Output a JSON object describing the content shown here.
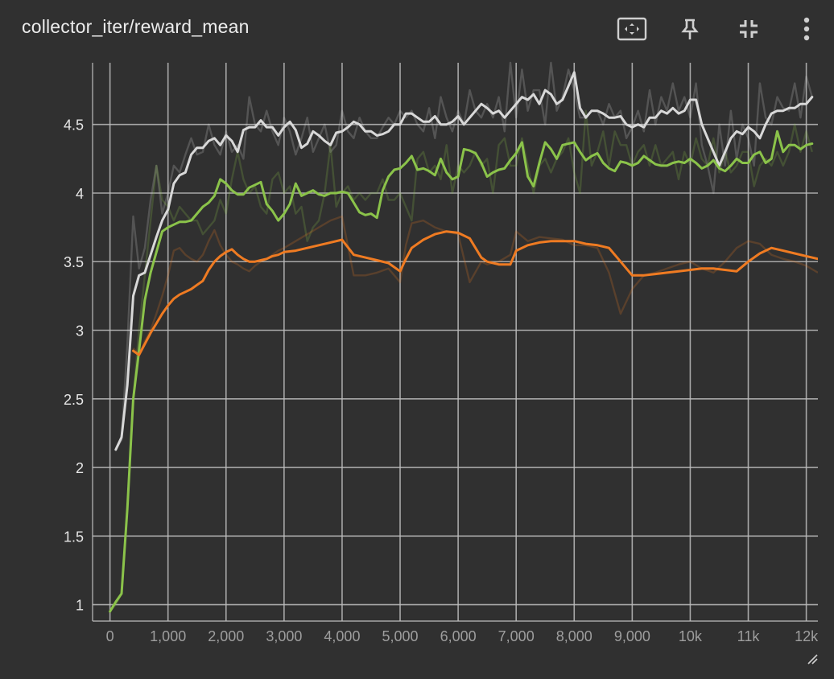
{
  "card": {
    "title": "collector_iter/reward_mean"
  },
  "toolbar": [
    {
      "name": "fit-domain-icon"
    },
    {
      "name": "pin-icon"
    },
    {
      "name": "collapse-icon"
    },
    {
      "name": "more-vert-icon"
    }
  ],
  "colors": {
    "background": "#303030",
    "grid": "#bdbdbd",
    "tick_text": "#e6e6e6",
    "x_tick_text": "#9e9e9e"
  },
  "chart_data": {
    "type": "line",
    "title": "",
    "xlabel": "",
    "ylabel": "",
    "xlim": [
      -300,
      12200
    ],
    "ylim": [
      0.88,
      4.95
    ],
    "grid": true,
    "x_ticks": [
      {
        "value": 0,
        "label": "0"
      },
      {
        "value": 1000,
        "label": "1,000"
      },
      {
        "value": 2000,
        "label": "2,000"
      },
      {
        "value": 3000,
        "label": "3,000"
      },
      {
        "value": 4000,
        "label": "4,000"
      },
      {
        "value": 5000,
        "label": "5,000"
      },
      {
        "value": 6000,
        "label": "6,000"
      },
      {
        "value": 7000,
        "label": "7,000"
      },
      {
        "value": 8000,
        "label": "8,000"
      },
      {
        "value": 9000,
        "label": "9,000"
      },
      {
        "value": 10000,
        "label": "10k"
      },
      {
        "value": 11000,
        "label": "11k"
      },
      {
        "value": 12000,
        "label": "12k"
      }
    ],
    "y_ticks": [
      {
        "value": 1,
        "label": "1"
      },
      {
        "value": 1.5,
        "label": "1.5"
      },
      {
        "value": 2,
        "label": "2"
      },
      {
        "value": 2.5,
        "label": "2.5"
      },
      {
        "value": 3,
        "label": "3"
      },
      {
        "value": 3.5,
        "label": "3.5"
      },
      {
        "value": 4,
        "label": "4"
      },
      {
        "value": 4.5,
        "label": "4.5"
      }
    ],
    "series": [
      {
        "color": "#d8d8d8",
        "x": [
          100,
          200,
          300,
          400,
          500,
          600,
          700,
          800,
          900,
          1000,
          1100,
          1200,
          1300,
          1400,
          1500,
          1600,
          1700,
          1800,
          1900,
          2000,
          2100,
          2200,
          2300,
          2400,
          2500,
          2600,
          2700,
          2800,
          2900,
          3000,
          3100,
          3200,
          3300,
          3400,
          3500,
          3600,
          3700,
          3800,
          3900,
          4000,
          4100,
          4200,
          4300,
          4400,
          4500,
          4600,
          4700,
          4800,
          4900,
          5000,
          5100,
          5200,
          5300,
          5400,
          5500,
          5600,
          5700,
          5800,
          5900,
          6000,
          6100,
          6200,
          6300,
          6400,
          6500,
          6600,
          6700,
          6800,
          6900,
          7000,
          7100,
          7200,
          7300,
          7400,
          7500,
          7600,
          7700,
          7800,
          7900,
          8000,
          8100,
          8200,
          8300,
          8400,
          8500,
          8600,
          8700,
          8800,
          8900,
          9000,
          9100,
          9200,
          9300,
          9400,
          9500,
          9600,
          9700,
          9800,
          9900,
          10000,
          10100,
          10200,
          10300,
          10400,
          10500,
          10600,
          10700,
          10800,
          10900,
          11000,
          11100,
          11200,
          11300,
          11400,
          11500,
          11600,
          11700,
          11800,
          11900,
          12000,
          12100
        ],
        "raw_y": [
          2.13,
          2.2,
          2.9,
          3.83,
          3.45,
          3.6,
          3.95,
          4.2,
          3.85,
          4.0,
          4.2,
          4.15,
          4.28,
          4.4,
          4.28,
          4.3,
          4.5,
          4.35,
          4.28,
          4.45,
          4.3,
          4.35,
          4.25,
          4.7,
          4.5,
          4.45,
          4.6,
          4.45,
          4.35,
          4.55,
          4.45,
          4.28,
          4.4,
          4.55,
          4.3,
          4.4,
          4.5,
          4.3,
          4.35,
          4.6,
          4.45,
          4.4,
          4.55,
          4.45,
          4.4,
          4.4,
          4.48,
          4.55,
          4.5,
          4.6,
          4.55,
          4.6,
          4.5,
          4.45,
          4.62,
          4.4,
          4.7,
          4.55,
          4.45,
          4.6,
          4.5,
          4.75,
          4.6,
          4.55,
          4.65,
          4.55,
          4.7,
          4.45,
          4.95,
          4.55,
          4.9,
          4.6,
          4.75,
          4.75,
          4.5,
          4.95,
          4.6,
          4.7,
          4.9,
          4.75,
          4.55,
          4.55,
          4.6,
          4.6,
          4.5,
          4.65,
          4.55,
          4.6,
          4.4,
          4.48,
          4.6,
          4.45,
          4.75,
          4.5,
          4.7,
          4.6,
          4.8,
          4.6,
          4.7,
          4.55,
          4.8,
          4.35,
          4.2,
          4.0,
          4.5,
          4.2,
          4.6,
          4.25,
          4.5,
          4.4,
          4.2,
          4.8,
          4.55,
          4.5,
          4.7,
          4.62,
          4.6,
          4.8,
          4.55,
          4.85,
          4.7
        ],
        "y": [
          2.13,
          2.22,
          2.6,
          3.25,
          3.4,
          3.42,
          3.55,
          3.68,
          3.8,
          3.88,
          4.07,
          4.13,
          4.15,
          4.28,
          4.33,
          4.33,
          4.38,
          4.4,
          4.35,
          4.42,
          4.38,
          4.3,
          4.46,
          4.48,
          4.48,
          4.53,
          4.48,
          4.48,
          4.42,
          4.48,
          4.52,
          4.46,
          4.33,
          4.36,
          4.45,
          4.42,
          4.38,
          4.35,
          4.44,
          4.45,
          4.48,
          4.52,
          4.5,
          4.45,
          4.45,
          4.42,
          4.43,
          4.45,
          4.5,
          4.5,
          4.58,
          4.58,
          4.55,
          4.52,
          4.52,
          4.56,
          4.5,
          4.5,
          4.52,
          4.56,
          4.5,
          4.55,
          4.6,
          4.65,
          4.62,
          4.58,
          4.6,
          4.55,
          4.6,
          4.65,
          4.7,
          4.68,
          4.72,
          4.65,
          4.75,
          4.72,
          4.65,
          4.68,
          4.78,
          4.88,
          4.62,
          4.55,
          4.6,
          4.6,
          4.58,
          4.55,
          4.55,
          4.56,
          4.5,
          4.48,
          4.5,
          4.48,
          4.55,
          4.55,
          4.6,
          4.58,
          4.62,
          4.58,
          4.6,
          4.68,
          4.68,
          4.5,
          4.4,
          4.3,
          4.2,
          4.3,
          4.4,
          4.45,
          4.43,
          4.48,
          4.45,
          4.4,
          4.5,
          4.58,
          4.6,
          4.6,
          4.62,
          4.62,
          4.65,
          4.65,
          4.7
        ]
      },
      {
        "color": "#8bc34a",
        "x": [
          0,
          100,
          200,
          300,
          400,
          500,
          600,
          700,
          800,
          900,
          1000,
          1100,
          1200,
          1300,
          1400,
          1500,
          1600,
          1700,
          1800,
          1900,
          2000,
          2100,
          2200,
          2300,
          2400,
          2500,
          2600,
          2700,
          2800,
          2900,
          3000,
          3100,
          3200,
          3300,
          3400,
          3500,
          3600,
          3700,
          3800,
          3900,
          4000,
          4100,
          4200,
          4300,
          4400,
          4500,
          4600,
          4700,
          4800,
          4900,
          5000,
          5100,
          5200,
          5300,
          5400,
          5500,
          5600,
          5700,
          5800,
          5900,
          6000,
          6100,
          6200,
          6300,
          6400,
          6500,
          6600,
          6700,
          6800,
          6900,
          7000,
          7100,
          7200,
          7300,
          7400,
          7500,
          7600,
          7700,
          7800,
          7900,
          8000,
          8100,
          8200,
          8300,
          8400,
          8500,
          8600,
          8700,
          8800,
          8900,
          9000,
          9100,
          9200,
          9300,
          9400,
          9500,
          9600,
          9700,
          9800,
          9900,
          10000,
          10100,
          10200,
          10300,
          10400,
          10500,
          10600,
          10700,
          10800,
          10900,
          11000,
          11100,
          11200,
          11300,
          11400,
          11500,
          11600,
          11700,
          11800,
          11900,
          12000,
          12100
        ],
        "raw_y": [
          0.95,
          1.0,
          1.08,
          1.7,
          2.5,
          3.0,
          3.4,
          3.8,
          4.2,
          3.95,
          3.9,
          3.8,
          3.9,
          3.85,
          3.8,
          3.8,
          3.7,
          3.75,
          3.8,
          3.95,
          3.85,
          4.1,
          4.3,
          4.1,
          4.0,
          4.05,
          3.9,
          3.85,
          4.1,
          4.15,
          4.0,
          4.05,
          3.85,
          3.9,
          3.65,
          3.75,
          3.8,
          4.0,
          4.35,
          3.9,
          4.0,
          4.05,
          3.95,
          4.0,
          3.95,
          4.0,
          4.0,
          4.1,
          3.95,
          3.95,
          4.0,
          3.9,
          3.8,
          4.25,
          4.3,
          4.15,
          4.2,
          4.1,
          4.35,
          4.0,
          4.2,
          4.15,
          4.2,
          4.3,
          4.2,
          4.25,
          4.0,
          4.35,
          4.4,
          4.2,
          4.2,
          4.4,
          4.2,
          4.0,
          4.2,
          4.25,
          4.15,
          4.25,
          4.3,
          4.4,
          4.15,
          4.0,
          4.6,
          4.2,
          4.3,
          4.45,
          4.2,
          4.45,
          4.35,
          4.35,
          4.2,
          4.3,
          4.35,
          4.2,
          4.35,
          4.2,
          4.25,
          4.3,
          4.1,
          4.3,
          4.2,
          4.4,
          4.25,
          4.2,
          4.4,
          4.15,
          4.3,
          4.15,
          4.2,
          4.3,
          4.3,
          4.05,
          4.2,
          4.25,
          4.2,
          4.3,
          4.2,
          4.3,
          4.5,
          4.3,
          4.45,
          4.3
        ],
        "y": [
          0.95,
          1.02,
          1.08,
          1.7,
          2.5,
          2.85,
          3.22,
          3.42,
          3.57,
          3.72,
          3.75,
          3.77,
          3.79,
          3.79,
          3.8,
          3.85,
          3.9,
          3.93,
          3.98,
          4.1,
          4.07,
          4.02,
          3.99,
          3.99,
          4.04,
          4.06,
          4.08,
          3.92,
          3.87,
          3.8,
          3.85,
          3.92,
          4.07,
          3.98,
          4.0,
          4.02,
          3.99,
          3.98,
          4.0,
          4.0,
          4.01,
          4.0,
          3.93,
          3.86,
          3.84,
          3.85,
          3.82,
          4.02,
          4.12,
          4.17,
          4.18,
          4.22,
          4.27,
          4.17,
          4.18,
          4.16,
          4.13,
          4.25,
          4.15,
          4.1,
          4.12,
          4.32,
          4.31,
          4.29,
          4.22,
          4.12,
          4.15,
          4.17,
          4.18,
          4.24,
          4.29,
          4.37,
          4.12,
          4.05,
          4.22,
          4.37,
          4.32,
          4.25,
          4.35,
          4.36,
          4.37,
          4.3,
          4.24,
          4.27,
          4.29,
          4.22,
          4.18,
          4.16,
          4.23,
          4.22,
          4.2,
          4.22,
          4.27,
          4.24,
          4.21,
          4.2,
          4.2,
          4.22,
          4.23,
          4.22,
          4.25,
          4.22,
          4.18,
          4.2,
          4.24,
          4.18,
          4.16,
          4.2,
          4.25,
          4.22,
          4.22,
          4.28,
          4.3,
          4.22,
          4.25,
          4.45,
          4.3,
          4.35,
          4.35,
          4.32,
          4.35,
          4.36
        ]
      },
      {
        "color": "#ef7b22",
        "x": [
          400,
          500,
          600,
          700,
          800,
          900,
          1000,
          1100,
          1200,
          1300,
          1400,
          1500,
          1600,
          1700,
          1800,
          1900,
          2000,
          2100,
          2200,
          2300,
          2400,
          2500,
          2600,
          2700,
          2800,
          2900,
          3000,
          3200,
          3400,
          3600,
          3800,
          4000,
          4200,
          4400,
          4600,
          4800,
          5000,
          5100,
          5200,
          5400,
          5600,
          5800,
          6000,
          6200,
          6400,
          6500,
          6700,
          6900,
          7000,
          7200,
          7400,
          7600,
          7800,
          8000,
          8200,
          8400,
          8600,
          8800,
          9000,
          9200,
          9400,
          9600,
          9800,
          10000,
          10200,
          10400,
          10600,
          10800,
          11000,
          11200,
          11400,
          11600,
          11800,
          12000,
          12200
        ],
        "raw_y": [
          2.87,
          2.82,
          2.92,
          3.0,
          3.12,
          3.25,
          3.4,
          3.58,
          3.6,
          3.55,
          3.52,
          3.5,
          3.55,
          3.65,
          3.73,
          3.62,
          3.55,
          3.5,
          3.48,
          3.45,
          3.43,
          3.47,
          3.5,
          3.52,
          3.55,
          3.58,
          3.6,
          3.65,
          3.7,
          3.75,
          3.8,
          3.83,
          3.4,
          3.4,
          3.42,
          3.45,
          3.35,
          3.62,
          3.78,
          3.8,
          3.75,
          3.72,
          3.7,
          3.35,
          3.5,
          3.48,
          3.5,
          3.55,
          3.72,
          3.65,
          3.68,
          3.67,
          3.66,
          3.62,
          3.62,
          3.6,
          3.42,
          3.12,
          3.3,
          3.4,
          3.42,
          3.45,
          3.48,
          3.5,
          3.45,
          3.42,
          3.5,
          3.6,
          3.65,
          3.63,
          3.55,
          3.52,
          3.5,
          3.47,
          3.42
        ],
        "y": [
          2.85,
          2.82,
          2.9,
          2.98,
          3.05,
          3.12,
          3.18,
          3.23,
          3.26,
          3.28,
          3.3,
          3.33,
          3.36,
          3.44,
          3.5,
          3.54,
          3.57,
          3.59,
          3.55,
          3.52,
          3.5,
          3.5,
          3.51,
          3.52,
          3.54,
          3.55,
          3.57,
          3.58,
          3.6,
          3.62,
          3.64,
          3.66,
          3.55,
          3.53,
          3.51,
          3.49,
          3.43,
          3.52,
          3.6,
          3.66,
          3.7,
          3.72,
          3.71,
          3.67,
          3.53,
          3.5,
          3.48,
          3.48,
          3.58,
          3.62,
          3.64,
          3.65,
          3.65,
          3.65,
          3.63,
          3.62,
          3.6,
          3.5,
          3.4,
          3.4,
          3.41,
          3.42,
          3.43,
          3.44,
          3.45,
          3.45,
          3.44,
          3.43,
          3.5,
          3.56,
          3.6,
          3.58,
          3.56,
          3.54,
          3.52
        ]
      }
    ]
  }
}
